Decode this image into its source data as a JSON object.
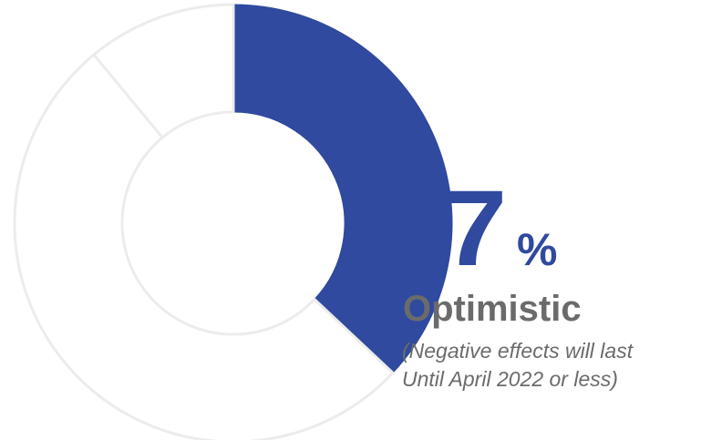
{
  "chart_data": {
    "type": "pie",
    "categories": [
      "Optimistic",
      "",
      ""
    ],
    "values": [
      37,
      52,
      11
    ],
    "highlight_index": 0,
    "colors": {
      "highlight": "#2f4a9e",
      "muted": "#ffffff",
      "stroke": "#ececec"
    },
    "value_label": "37",
    "unit": "%",
    "category_label": "Optimistic",
    "note_lines": [
      "(Negative effects will last",
      "Until April 2022 or less)"
    ]
  }
}
